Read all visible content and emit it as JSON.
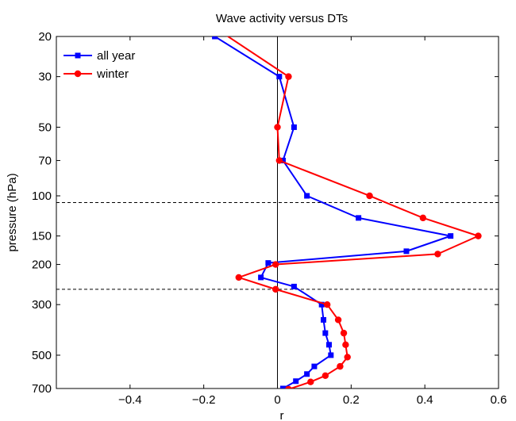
{
  "chart_data": {
    "type": "line",
    "title": "Wave activity versus DTs",
    "xlabel": "r",
    "ylabel": "pressure (hPa)",
    "xlim": [
      -0.6,
      0.6
    ],
    "ylim": [
      700,
      20
    ],
    "yscale": "log",
    "grid": false,
    "legend_position": "top-left",
    "x_ticks": [
      -0.4,
      -0.2,
      0,
      0.2,
      0.4,
      0.6
    ],
    "x_tick_labels": [
      "−0.4",
      "−0.2",
      "0",
      "0.2",
      "0.4",
      "0.6"
    ],
    "y_ticks": [
      20,
      30,
      50,
      70,
      100,
      150,
      200,
      300,
      500,
      700
    ],
    "y_tick_labels": [
      "20",
      "30",
      "50",
      "70",
      "100",
      "150",
      "200",
      "300",
      "500",
      "700"
    ],
    "zero_line_x": 0,
    "dashed_lines_y": [
      107,
      257
    ],
    "series": [
      {
        "name": "all year",
        "color": "#0000ff",
        "marker": "square",
        "points": [
          [
            -0.17,
            20
          ],
          [
            0.005,
            30
          ],
          [
            0.045,
            50
          ],
          [
            0.015,
            70
          ],
          [
            0.08,
            100
          ],
          [
            0.22,
            125
          ],
          [
            0.47,
            150
          ],
          [
            0.35,
            175
          ],
          [
            -0.025,
            197
          ],
          [
            -0.045,
            228
          ],
          [
            0.045,
            250
          ],
          [
            0.12,
            300
          ],
          [
            0.125,
            350
          ],
          [
            0.13,
            400
          ],
          [
            0.14,
            450
          ],
          [
            0.145,
            500
          ],
          [
            0.1,
            560
          ],
          [
            0.08,
            605
          ],
          [
            0.05,
            650
          ],
          [
            0.015,
            700
          ]
        ]
      },
      {
        "name": "winter",
        "color": "#ff0000",
        "marker": "circle",
        "points": [
          [
            -0.2,
            17
          ],
          [
            0.03,
            30
          ],
          [
            0,
            50
          ],
          [
            0.005,
            70
          ],
          [
            0.25,
            100
          ],
          [
            0.395,
            125
          ],
          [
            0.545,
            150
          ],
          [
            0.435,
            180
          ],
          [
            -0.005,
            200
          ],
          [
            -0.105,
            228
          ],
          [
            -0.005,
            257
          ],
          [
            0.135,
            300
          ],
          [
            0.165,
            350
          ],
          [
            0.18,
            400
          ],
          [
            0.185,
            450
          ],
          [
            0.19,
            510
          ],
          [
            0.17,
            560
          ],
          [
            0.13,
            615
          ],
          [
            0.09,
            655
          ],
          [
            0.03,
            705
          ]
        ]
      }
    ]
  }
}
